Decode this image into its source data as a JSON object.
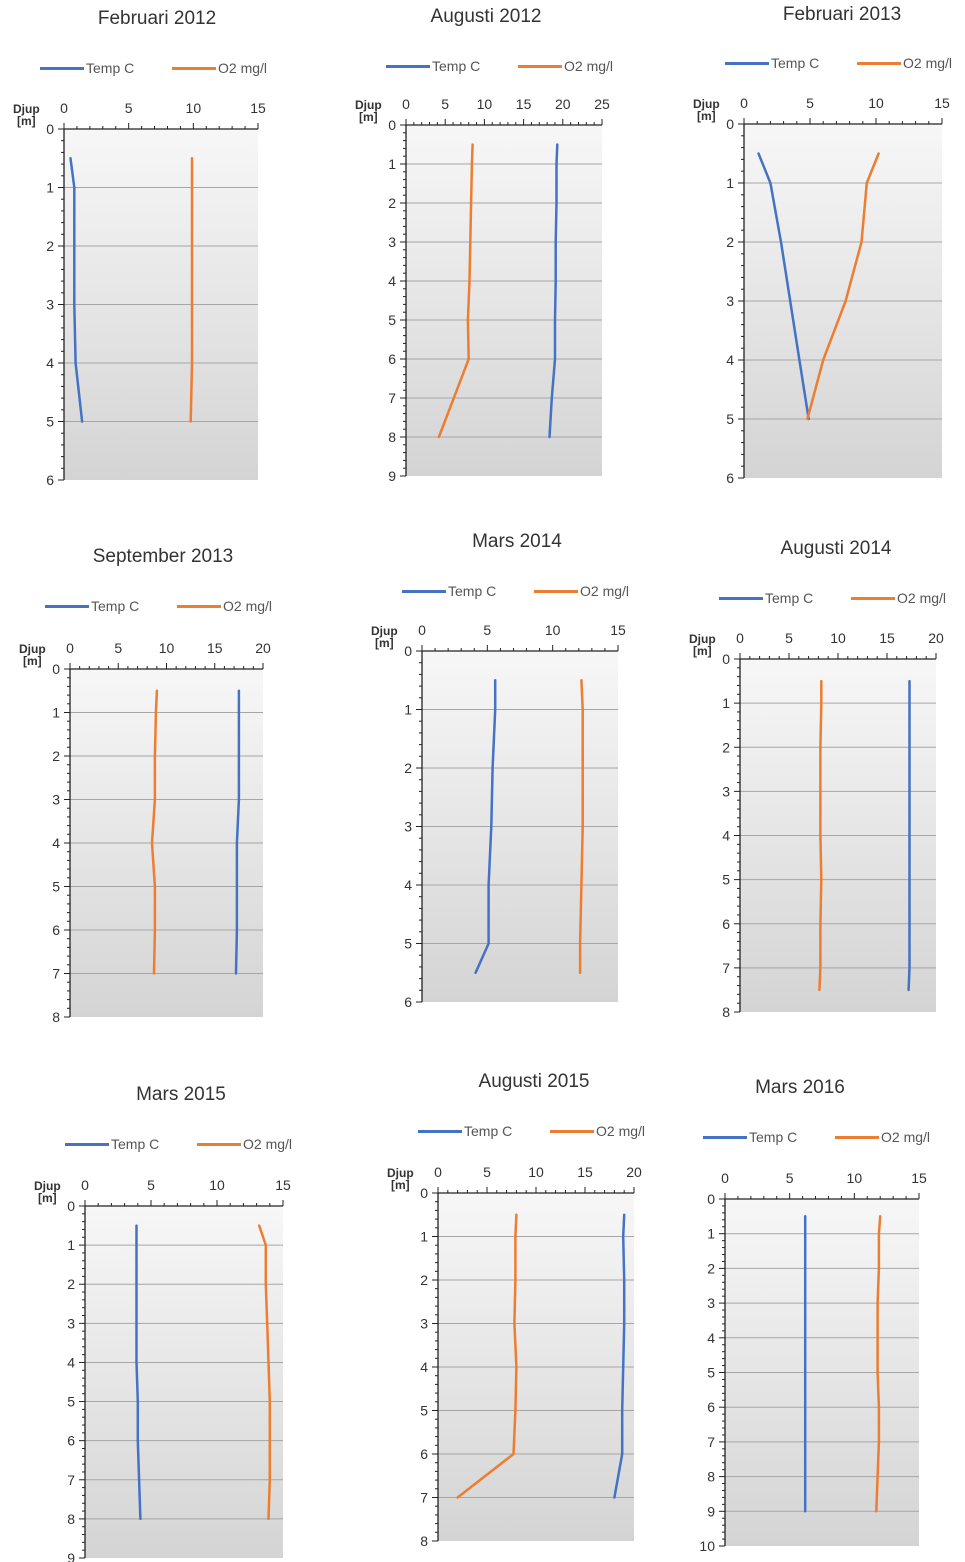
{
  "legend": {
    "temp_label": "Temp C",
    "o2_label": "O2 mg/l"
  },
  "colors": {
    "temp": "#4472c4",
    "o2": "#ed7d31",
    "grid": "#a6a6a6",
    "plot_bg_top": "#f7f7f7",
    "plot_bg_bottom": "#d4d4d4"
  },
  "chart_data": [
    {
      "type": "line",
      "title": "Februari 2012",
      "ylabel": "Djup\n[m]",
      "xlim": [
        0,
        15
      ],
      "x_ticks": [
        "0",
        "5",
        "10",
        "15"
      ],
      "ylim": [
        0,
        6
      ],
      "y_ticks": [
        "0",
        "1",
        "2",
        "3",
        "4",
        "5",
        "6"
      ],
      "series": [
        {
          "name": "Temp C",
          "points": [
            [
              0.5,
              0.5
            ],
            [
              0.8,
              1
            ],
            [
              0.8,
              2
            ],
            [
              0.8,
              3
            ],
            [
              0.9,
              4
            ],
            [
              1.4,
              5
            ]
          ]
        },
        {
          "name": "O2 mg/l",
          "points": [
            [
              9.9,
              0.5
            ],
            [
              9.9,
              1
            ],
            [
              9.9,
              2
            ],
            [
              9.9,
              3
            ],
            [
              9.9,
              4
            ],
            [
              9.8,
              5
            ]
          ]
        }
      ]
    },
    {
      "type": "line",
      "title": "Augusti 2012",
      "ylabel": "Djup\n[m]",
      "xlim": [
        0,
        25
      ],
      "x_ticks": [
        "0",
        "5",
        "10",
        "15",
        "20",
        "25"
      ],
      "ylim": [
        0,
        9
      ],
      "y_ticks": [
        "0",
        "1",
        "2",
        "3",
        "4",
        "5",
        "6",
        "7",
        "8",
        "9"
      ],
      "series": [
        {
          "name": "Temp C",
          "points": [
            [
              19.3,
              0.5
            ],
            [
              19.2,
              1
            ],
            [
              19.2,
              2
            ],
            [
              19.1,
              3
            ],
            [
              19.1,
              4
            ],
            [
              19.0,
              5
            ],
            [
              19.0,
              6
            ],
            [
              18.6,
              7
            ],
            [
              18.3,
              8
            ]
          ]
        },
        {
          "name": "O2 mg/l",
          "points": [
            [
              8.5,
              0.5
            ],
            [
              8.4,
              1
            ],
            [
              8.3,
              2
            ],
            [
              8.2,
              3
            ],
            [
              8.1,
              4
            ],
            [
              7.9,
              5
            ],
            [
              8.0,
              6
            ],
            [
              6.1,
              7
            ],
            [
              4.2,
              8
            ]
          ]
        }
      ]
    },
    {
      "type": "line",
      "title": "Februari 2013",
      "ylabel": "Djup\n[m]",
      "xlim": [
        0,
        15
      ],
      "x_ticks": [
        "0",
        "5",
        "10",
        "15"
      ],
      "ylim": [
        0,
        6
      ],
      "y_ticks": [
        "0",
        "1",
        "2",
        "3",
        "4",
        "5",
        "6"
      ],
      "series": [
        {
          "name": "Temp C",
          "points": [
            [
              1.1,
              0.5
            ],
            [
              2.0,
              1
            ],
            [
              2.8,
              2
            ],
            [
              3.5,
              3
            ],
            [
              4.2,
              4
            ],
            [
              4.9,
              5
            ]
          ]
        },
        {
          "name": "O2 mg/l",
          "points": [
            [
              10.2,
              0.5
            ],
            [
              9.3,
              1
            ],
            [
              8.9,
              2
            ],
            [
              7.7,
              3
            ],
            [
              6.0,
              4
            ],
            [
              4.8,
              5
            ]
          ]
        }
      ]
    },
    {
      "type": "line",
      "title": "September 2013",
      "ylabel": "Djup\n[m]",
      "xlim": [
        0,
        20
      ],
      "x_ticks": [
        "0",
        "5",
        "10",
        "15",
        "20"
      ],
      "ylim": [
        0,
        8
      ],
      "y_ticks": [
        "0",
        "1",
        "2",
        "3",
        "4",
        "5",
        "6",
        "7",
        "8"
      ],
      "series": [
        {
          "name": "Temp C",
          "points": [
            [
              17.5,
              0.5
            ],
            [
              17.5,
              1
            ],
            [
              17.5,
              2
            ],
            [
              17.5,
              3
            ],
            [
              17.3,
              4
            ],
            [
              17.3,
              5
            ],
            [
              17.3,
              6
            ],
            [
              17.2,
              7
            ]
          ]
        },
        {
          "name": "O2 mg/l",
          "points": [
            [
              9.0,
              0.5
            ],
            [
              8.9,
              1
            ],
            [
              8.8,
              2
            ],
            [
              8.8,
              3
            ],
            [
              8.5,
              4
            ],
            [
              8.8,
              5
            ],
            [
              8.8,
              6
            ],
            [
              8.7,
              7
            ]
          ]
        }
      ]
    },
    {
      "type": "line",
      "title": "Mars 2014",
      "ylabel": "Djup\n[m]",
      "xlim": [
        0,
        15
      ],
      "x_ticks": [
        "0",
        "5",
        "10",
        "15"
      ],
      "ylim": [
        0,
        6
      ],
      "y_ticks": [
        "0",
        "1",
        "2",
        "3",
        "4",
        "5",
        "6"
      ],
      "series": [
        {
          "name": "Temp C",
          "points": [
            [
              5.6,
              0.5
            ],
            [
              5.6,
              1
            ],
            [
              5.4,
              2
            ],
            [
              5.3,
              3
            ],
            [
              5.1,
              4
            ],
            [
              5.1,
              5
            ],
            [
              4.1,
              5.5
            ]
          ]
        },
        {
          "name": "O2 mg/l",
          "points": [
            [
              12.2,
              0.5
            ],
            [
              12.3,
              1
            ],
            [
              12.3,
              2
            ],
            [
              12.3,
              3
            ],
            [
              12.2,
              4
            ],
            [
              12.1,
              5
            ],
            [
              12.1,
              5.5
            ]
          ]
        }
      ]
    },
    {
      "type": "line",
      "title": "Augusti 2014",
      "ylabel": "Djup\n[m]",
      "xlim": [
        0,
        20
      ],
      "x_ticks": [
        "0",
        "5",
        "10",
        "15",
        "20"
      ],
      "ylim": [
        0,
        8
      ],
      "y_ticks": [
        "0",
        "1",
        "2",
        "3",
        "4",
        "5",
        "6",
        "7",
        "8"
      ],
      "series": [
        {
          "name": "Temp C",
          "points": [
            [
              17.3,
              0.5
            ],
            [
              17.3,
              1
            ],
            [
              17.3,
              2
            ],
            [
              17.3,
              3
            ],
            [
              17.3,
              4
            ],
            [
              17.3,
              5
            ],
            [
              17.3,
              6
            ],
            [
              17.3,
              7
            ],
            [
              17.2,
              7.5
            ]
          ]
        },
        {
          "name": "O2 mg/l",
          "points": [
            [
              8.3,
              0.5
            ],
            [
              8.3,
              1
            ],
            [
              8.2,
              2
            ],
            [
              8.2,
              3
            ],
            [
              8.2,
              4
            ],
            [
              8.3,
              5
            ],
            [
              8.2,
              6
            ],
            [
              8.2,
              7
            ],
            [
              8.1,
              7.5
            ]
          ]
        }
      ]
    },
    {
      "type": "line",
      "title": "Mars 2015",
      "ylabel": "Djup\n[m]",
      "xlim": [
        0,
        15
      ],
      "x_ticks": [
        "0",
        "5",
        "10",
        "15"
      ],
      "ylim": [
        0,
        9
      ],
      "y_ticks": [
        "0",
        "1",
        "2",
        "3",
        "4",
        "5",
        "6",
        "7",
        "8",
        "9"
      ],
      "series": [
        {
          "name": "Temp C",
          "points": [
            [
              3.9,
              0.5
            ],
            [
              3.9,
              1
            ],
            [
              3.9,
              2
            ],
            [
              3.9,
              3
            ],
            [
              3.9,
              4
            ],
            [
              4.0,
              5
            ],
            [
              4.0,
              6
            ],
            [
              4.1,
              7
            ],
            [
              4.2,
              8
            ]
          ]
        },
        {
          "name": "O2 mg/l",
          "points": [
            [
              13.2,
              0.5
            ],
            [
              13.7,
              1
            ],
            [
              13.7,
              2
            ],
            [
              13.8,
              3
            ],
            [
              13.9,
              4
            ],
            [
              14.0,
              5
            ],
            [
              14.0,
              6
            ],
            [
              14.0,
              7
            ],
            [
              13.9,
              8
            ]
          ]
        }
      ]
    },
    {
      "type": "line",
      "title": "Augusti 2015",
      "ylabel": "Djup\n[m]",
      "xlim": [
        0,
        20
      ],
      "x_ticks": [
        "0",
        "5",
        "10",
        "15",
        "20"
      ],
      "ylim": [
        0,
        8
      ],
      "y_ticks": [
        "0",
        "1",
        "2",
        "3",
        "4",
        "5",
        "6",
        "7",
        "8"
      ],
      "series": [
        {
          "name": "Temp C",
          "points": [
            [
              19.0,
              0.5
            ],
            [
              18.9,
              1
            ],
            [
              19.0,
              2
            ],
            [
              19.0,
              3
            ],
            [
              18.9,
              4
            ],
            [
              18.8,
              5
            ],
            [
              18.8,
              6
            ],
            [
              18.0,
              7
            ]
          ]
        },
        {
          "name": "O2 mg/l",
          "points": [
            [
              8.0,
              0.5
            ],
            [
              7.9,
              1
            ],
            [
              7.9,
              2
            ],
            [
              7.8,
              3
            ],
            [
              8.0,
              4
            ],
            [
              7.9,
              5
            ],
            [
              7.7,
              6
            ],
            [
              2.0,
              7
            ]
          ]
        }
      ]
    },
    {
      "type": "line",
      "title": "Mars 2016",
      "ylabel": "",
      "xlim": [
        0,
        15
      ],
      "x_ticks": [
        "0",
        "5",
        "10",
        "15"
      ],
      "ylim": [
        0,
        10
      ],
      "y_ticks": [
        "0",
        "1",
        "2",
        "3",
        "4",
        "5",
        "6",
        "7",
        "8",
        "9",
        "10"
      ],
      "series": [
        {
          "name": "Temp C",
          "points": [
            [
              6.2,
              0.5
            ],
            [
              6.2,
              1
            ],
            [
              6.2,
              2
            ],
            [
              6.2,
              3
            ],
            [
              6.2,
              4
            ],
            [
              6.2,
              5
            ],
            [
              6.2,
              6
            ],
            [
              6.2,
              7
            ],
            [
              6.2,
              8
            ],
            [
              6.2,
              9
            ]
          ]
        },
        {
          "name": "O2 mg/l",
          "points": [
            [
              12.0,
              0.5
            ],
            [
              11.9,
              1
            ],
            [
              11.9,
              2
            ],
            [
              11.8,
              3
            ],
            [
              11.8,
              4
            ],
            [
              11.8,
              5
            ],
            [
              11.9,
              6
            ],
            [
              11.9,
              7
            ],
            [
              11.8,
              8
            ],
            [
              11.7,
              9
            ]
          ]
        }
      ]
    }
  ]
}
